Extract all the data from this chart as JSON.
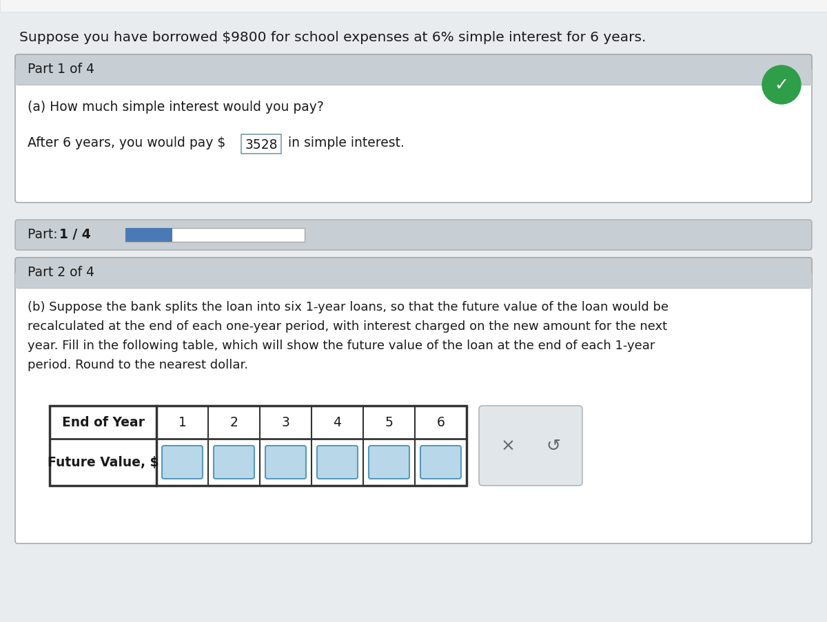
{
  "bg_color": "#e8ecef",
  "white": "#ffffff",
  "light_gray_header": "#c8cfd4",
  "green_circle": "#2e9e48",
  "blue_progress": "#4a7ab5",
  "light_blue_input": "#b8d8ea",
  "input_border": "#5599bb",
  "answer_box_border": "#7799aa",
  "outer_border": "#aaaaaa",
  "table_border": "#333333",
  "btn_bg": "#e0e6ea",
  "btn_border": "#aaaaaa",
  "black": "#1a1a1a",
  "gray_btn": "#666666",
  "intro_text": "Suppose you have borrowed $9800 for school expenses at 6% simple interest for 6 years.",
  "part1_header": "Part 1 of 4",
  "part1_question": "(a) How much simple interest would you pay?",
  "part1_answer_prefix": "After 6 years, you would pay $",
  "part1_answer_value": "3528",
  "part1_answer_suffix": " in simple interest.",
  "progress_label_normal": "Part: ",
  "progress_label_bold": "1 / 4",
  "part2_header": "Part 2 of 4",
  "part2_lines": [
    "(b) Suppose the bank splits the loan into six 1-year loans, so that the future value of the loan would be",
    "recalculated at the end of each one-year period, with interest charged on the new amount for the next",
    "year. Fill in the following table, which will show the future value of the loan at the end of each 1-year",
    "period. Round to the nearest dollar."
  ],
  "table_row1_label": "End of Year",
  "table_row1_values": [
    "1",
    "2",
    "3",
    "4",
    "5",
    "6"
  ],
  "table_row2_label": "Future Value, $"
}
